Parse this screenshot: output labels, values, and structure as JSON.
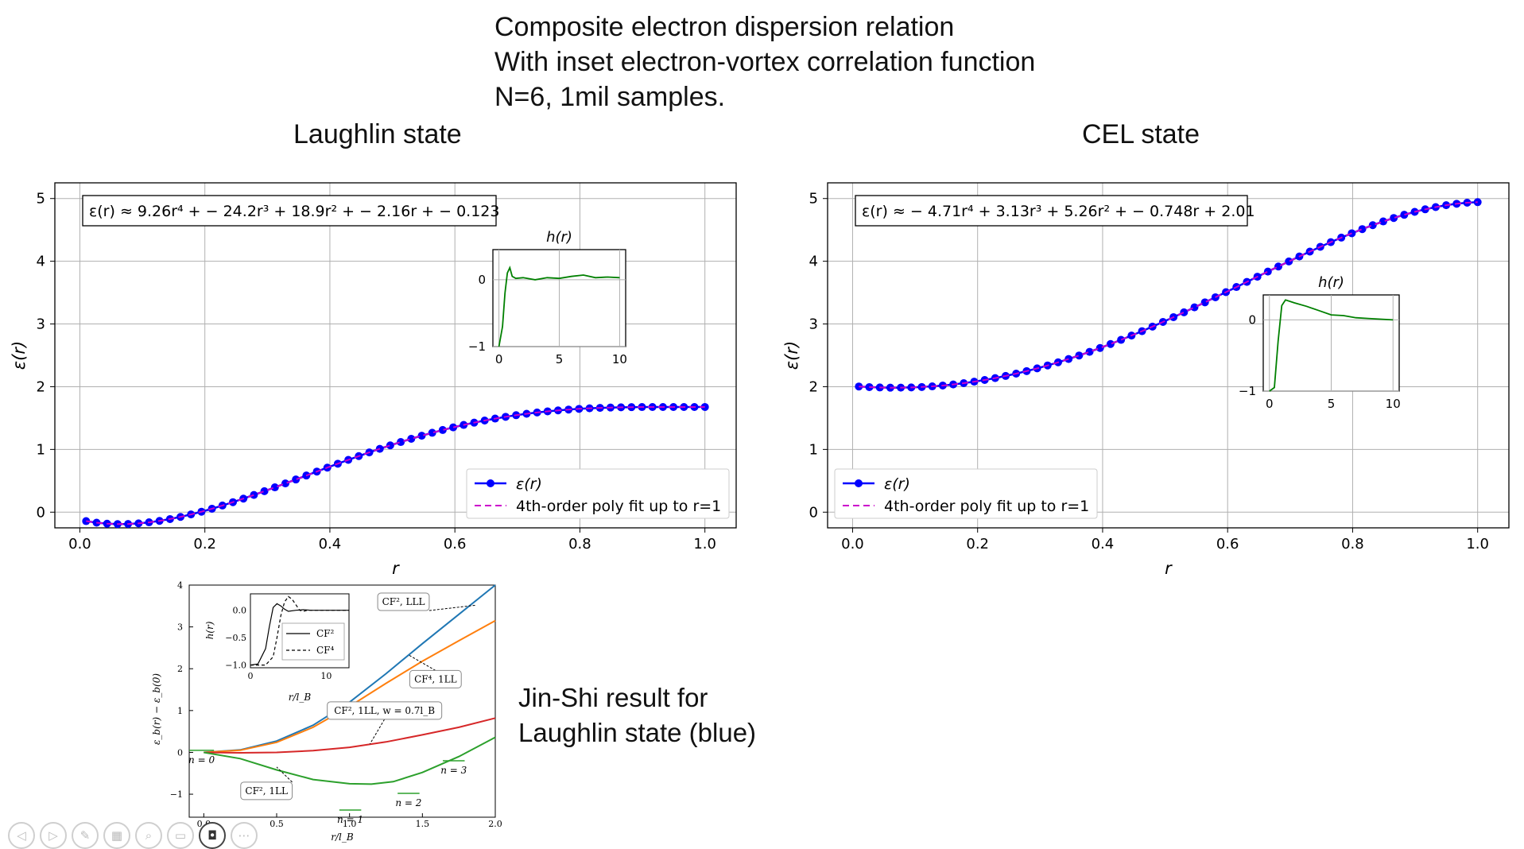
{
  "slide": {
    "title_lines": [
      "Composite electron dispersion relation",
      "With inset electron-vortex correlation function",
      "N=6, 1mil samples."
    ],
    "left_title": "Laughlin state",
    "right_title": "CEL state",
    "caption_lines": [
      "Jin-Shi result for",
      "Laughlin state (blue)"
    ]
  },
  "toolbar": {
    "icons": [
      "prev-icon",
      "next-icon",
      "pen-icon",
      "grid-icon",
      "zoom-icon",
      "subtitles-icon",
      "camera-icon",
      "more-icon"
    ]
  },
  "chart_data": [
    {
      "id": "laughlin",
      "type": "line",
      "xlabel": "r",
      "ylabel": "ε(r)",
      "xlim": [
        -0.04,
        1.05
      ],
      "ylim": [
        -0.25,
        5.25
      ],
      "xticks": [
        0.0,
        0.2,
        0.4,
        0.6,
        0.8,
        1.0
      ],
      "xtick_labels": [
        "0.0",
        "0.2",
        "0.4",
        "0.6",
        "0.8",
        "1.0"
      ],
      "yticks": [
        0,
        1,
        2,
        3,
        4,
        5
      ],
      "ytick_labels": [
        "0",
        "1",
        "2",
        "3",
        "4",
        "5"
      ],
      "grid": true,
      "series_color": "#0000ff",
      "fit_color": "#cc00cc",
      "legend_placement": "lower right",
      "legend": [
        "ε(r)",
        "4th-order poly fit up to r=1"
      ],
      "annotation": "ε(r) ≈ 9.26r⁴ + − 24.2r³ + 18.9r² + − 2.16r + − 0.123",
      "fit_coefficients": [
        9.26,
        -24.2,
        18.9,
        -2.16,
        -0.123
      ],
      "r_range": [
        0.01,
        1.0
      ],
      "points": 60,
      "inset": {
        "title": "h(r)",
        "xlim": [
          -0.5,
          10.5
        ],
        "ylim": [
          -1,
          0.45
        ],
        "xticks": [
          0,
          5,
          10
        ],
        "xtick_labels": [
          "0",
          "5",
          "10"
        ],
        "yticks": [
          0,
          -1
        ],
        "ytick_labels": [
          "0",
          "−1"
        ],
        "color": "#008000",
        "x": [
          0,
          0.3,
          0.5,
          0.7,
          0.9,
          1.1,
          1.4,
          2,
          3,
          4,
          5,
          6,
          7,
          8,
          9,
          10
        ],
        "y": [
          -1,
          -0.7,
          -0.2,
          0.1,
          0.18,
          0.05,
          0.02,
          0.03,
          0.0,
          0.03,
          0.02,
          0.05,
          0.07,
          0.03,
          0.04,
          0.03
        ]
      }
    },
    {
      "id": "cel",
      "type": "line",
      "xlabel": "r",
      "ylabel": "ε(r)",
      "xlim": [
        -0.04,
        1.05
      ],
      "ylim": [
        -0.25,
        5.25
      ],
      "xticks": [
        0.0,
        0.2,
        0.4,
        0.6,
        0.8,
        1.0
      ],
      "xtick_labels": [
        "0.0",
        "0.2",
        "0.4",
        "0.6",
        "0.8",
        "1.0"
      ],
      "yticks": [
        0,
        1,
        2,
        3,
        4,
        5
      ],
      "ytick_labels": [
        "0",
        "1",
        "2",
        "3",
        "4",
        "5"
      ],
      "grid": true,
      "series_color": "#0000ff",
      "fit_color": "#cc00cc",
      "legend_placement": "lower left",
      "legend": [
        "ε(r)",
        "4th-order poly fit up to r=1"
      ],
      "annotation": "ε(r) ≈ − 4.71r⁴ + 3.13r³ + 5.26r² + − 0.748r + 2.01",
      "fit_coefficients": [
        -4.71,
        3.13,
        5.26,
        -0.748,
        2.01
      ],
      "r_range": [
        0.01,
        1.0
      ],
      "points": 60,
      "inset": {
        "title": "h(r)",
        "xlim": [
          -0.5,
          10.5
        ],
        "ylim": [
          -1,
          0.35
        ],
        "xticks": [
          0,
          5,
          10
        ],
        "xtick_labels": [
          "0",
          "5",
          "10"
        ],
        "yticks": [
          0,
          -1
        ],
        "ytick_labels": [
          "0",
          "−1"
        ],
        "color": "#008000",
        "x": [
          0,
          0.4,
          0.7,
          1.0,
          1.3,
          2,
          3,
          4,
          5,
          6,
          7,
          8,
          9,
          10
        ],
        "y": [
          -1,
          -0.95,
          -0.3,
          0.2,
          0.28,
          0.24,
          0.19,
          0.13,
          0.07,
          0.06,
          0.03,
          0.02,
          0.01,
          0.0
        ]
      }
    },
    {
      "id": "jin-shi",
      "type": "line",
      "xlabel": "r/l_B",
      "ylabel": "ε_b(r) − ε_b(0)",
      "xlim": [
        -0.1,
        2.0
      ],
      "ylim": [
        -1.55,
        4.0
      ],
      "xticks": [
        0.0,
        0.5,
        1.0,
        1.5,
        2.0
      ],
      "xtick_labels": [
        "0.0",
        "0.5",
        "1.0",
        "1.5",
        "2.0"
      ],
      "yticks": [
        -1,
        0,
        1,
        2,
        3,
        4
      ],
      "ytick_labels": [
        "−1",
        "0",
        "1",
        "2",
        "3",
        "4"
      ],
      "grid": false,
      "series": [
        {
          "name": "CF², LLL",
          "color": "#1f77b4",
          "x": [
            0,
            0.25,
            0.5,
            0.75,
            1.0,
            1.25,
            1.5,
            1.75,
            2.0
          ],
          "y": [
            0,
            0.06,
            0.27,
            0.65,
            1.2,
            1.88,
            2.6,
            3.3,
            4.0
          ]
        },
        {
          "name": "CF⁴, 1LL",
          "color": "#ff7f0e",
          "x": [
            0,
            0.25,
            0.5,
            0.75,
            1.0,
            1.25,
            1.5,
            1.75,
            2.0
          ],
          "y": [
            0,
            0.05,
            0.24,
            0.6,
            1.1,
            1.65,
            2.18,
            2.67,
            3.15
          ]
        },
        {
          "name": "CF², 1LL, w = 0.7l_B",
          "color": "#d62728",
          "x": [
            0,
            0.25,
            0.5,
            0.75,
            1.0,
            1.25,
            1.5,
            1.75,
            2.0
          ],
          "y": [
            0,
            -0.01,
            0.0,
            0.04,
            0.12,
            0.25,
            0.42,
            0.6,
            0.82
          ]
        },
        {
          "name": "CF², 1LL",
          "color": "#2ca02c",
          "x": [
            0,
            0.25,
            0.5,
            0.75,
            1.0,
            1.15,
            1.3,
            1.5,
            1.75,
            2.0
          ],
          "y": [
            0,
            -0.15,
            -0.42,
            -0.65,
            -0.75,
            -0.76,
            -0.7,
            -0.48,
            -0.1,
            0.36
          ]
        }
      ],
      "levels": [
        {
          "label": "n = 0",
          "x": [
            -0.1,
            0.07
          ],
          "y": 0.05
        },
        {
          "label": "n = 1",
          "x": [
            0.93,
            1.08
          ],
          "y": -1.38
        },
        {
          "label": "n = 2",
          "x": [
            1.33,
            1.48
          ],
          "y": -0.98
        },
        {
          "label": "n = 3",
          "x": [
            1.64,
            1.79
          ],
          "y": -0.2
        }
      ],
      "annotations": [
        {
          "text": "CF², LLL",
          "tx": 1.37,
          "ty": 3.6,
          "ax": 1.87,
          "ay": 3.52
        },
        {
          "text": "CF⁴, 1LL",
          "tx": 1.59,
          "ty": 1.75,
          "ax": 1.41,
          "ay": 2.32
        },
        {
          "text": "CF², 1LL, w = 0.7l_B",
          "tx": 1.24,
          "ty": 1.0,
          "ax": 1.14,
          "ay": 0.2
        },
        {
          "text": "CF², 1LL",
          "tx": 0.43,
          "ty": -0.92,
          "ax": 0.5,
          "ay": -0.35
        }
      ],
      "inset": {
        "xlabel": "r/l_B",
        "ylabel": "h(r)",
        "xlim": [
          0,
          13
        ],
        "ylim": [
          -1.05,
          0.3
        ],
        "xticks": [
          0,
          10
        ],
        "xtick_labels": [
          "0",
          "10"
        ],
        "yticks": [
          0.0,
          -0.5,
          -1.0
        ],
        "ytick_labels": [
          "0.0",
          "−0.5",
          "−1.0"
        ],
        "legend": [
          "CF²",
          "CF⁴"
        ],
        "series": [
          {
            "name": "CF²",
            "dash": "solid",
            "x": [
              0,
              1,
              2,
              2.5,
              3,
              3.5,
              4,
              4.5,
              5,
              6,
              7,
              8,
              13
            ],
            "y": [
              -1.0,
              -0.98,
              -0.7,
              -0.3,
              0.05,
              0.12,
              0.08,
              0.02,
              -0.02,
              0.0,
              0.01,
              0.0,
              0.0
            ]
          },
          {
            "name": "CF⁴",
            "dash": "dashed",
            "x": [
              0,
              2,
              3,
              3.5,
              4,
              4.5,
              5,
              5.5,
              6,
              6.5,
              7,
              7.5,
              8,
              13
            ],
            "y": [
              -1.0,
              -1.0,
              -0.85,
              -0.5,
              -0.1,
              0.15,
              0.25,
              0.2,
              0.1,
              0.0,
              -0.02,
              0.0,
              0.0,
              0.0
            ]
          }
        ]
      }
    }
  ]
}
